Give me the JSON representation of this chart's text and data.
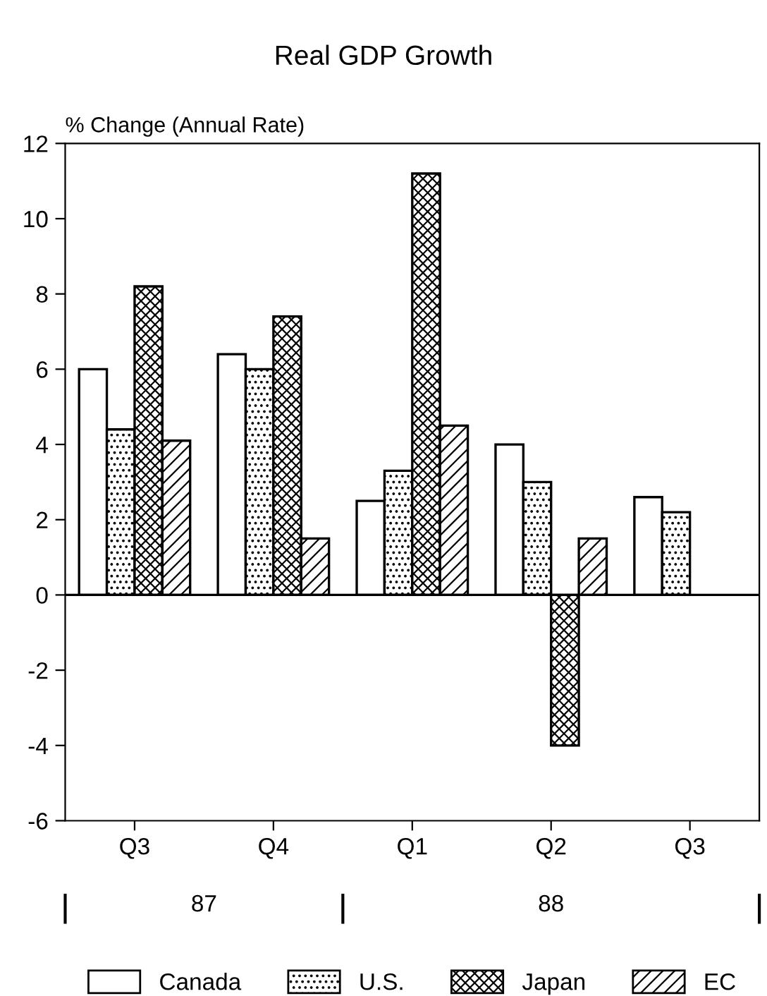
{
  "chart_data": {
    "type": "bar",
    "title": "Real GDP Growth",
    "ylabel": "% Change (Annual Rate)",
    "categories": [
      "Q3",
      "Q4",
      "Q1",
      "Q2",
      "Q3"
    ],
    "series": [
      {
        "name": "Canada",
        "color": "#ffffff",
        "values": [
          6.0,
          6.4,
          2.5,
          4.0,
          2.6
        ]
      },
      {
        "name": "U.S.",
        "color": "#000000",
        "values": [
          4.4,
          6.0,
          3.3,
          3.0,
          2.2
        ]
      },
      {
        "name": "Japan",
        "color": "#000000",
        "values": [
          8.2,
          7.4,
          11.2,
          -4.0,
          null
        ]
      },
      {
        "name": "EC",
        "color": "#000000",
        "values": [
          4.1,
          1.5,
          4.5,
          1.5,
          null
        ]
      }
    ],
    "ylim": [
      -6,
      12
    ],
    "yticks": [
      -6,
      -4,
      -2,
      0,
      2,
      4,
      6,
      8,
      10,
      12
    ],
    "annotations": [
      "87",
      "88"
    ],
    "ref_lines": [
      {
        "axis": "y",
        "value": 0
      }
    ],
    "grid": false,
    "legend": "bottom"
  }
}
